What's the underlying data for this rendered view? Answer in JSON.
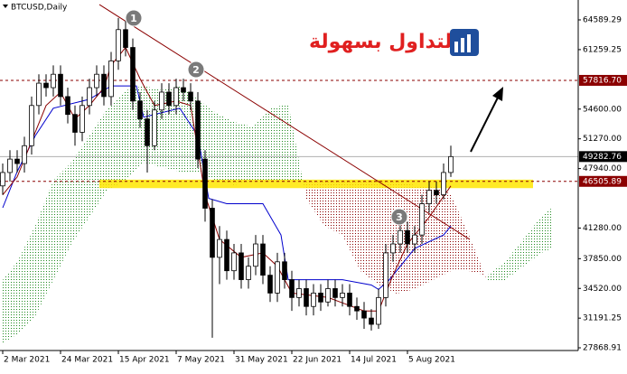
{
  "chart_data": {
    "type": "candlestick",
    "title": "BTCUSD,Daily",
    "x": [
      0,
      2,
      4,
      6,
      8,
      10,
      12,
      14,
      16,
      18,
      20,
      22,
      24,
      26,
      28,
      30,
      32,
      34,
      36,
      38,
      40,
      42,
      44,
      46,
      48,
      50,
      52,
      54,
      56,
      58,
      60,
      62,
      64,
      66,
      68,
      70,
      72,
      74,
      76,
      78,
      80,
      82,
      84,
      86,
      88,
      90,
      92,
      94,
      96,
      98,
      100,
      102,
      104,
      106,
      108,
      110,
      112,
      114,
      116,
      118,
      120,
      122,
      124
    ],
    "open": [
      46000,
      47500,
      49000,
      48500,
      50500,
      55000,
      57500,
      57000,
      58500,
      56000,
      54000,
      52000,
      55000,
      57000,
      58500,
      56000,
      60000,
      63500,
      61500,
      55500,
      53500,
      50500,
      54500,
      56500,
      55000,
      57000,
      56500,
      55500,
      49000,
      43500,
      38000,
      40000,
      36500,
      38500,
      35500,
      37000,
      39500,
      36000,
      34000,
      37500,
      35500,
      33500,
      34500,
      32500,
      34000,
      33000,
      34500,
      33500,
      34000,
      32500,
      32000,
      31200,
      30500,
      33500,
      38500,
      39500,
      41000,
      39500,
      40500,
      44000,
      45500,
      45000,
      47500
    ],
    "high": [
      48500,
      50000,
      50000,
      51500,
      56000,
      58500,
      58500,
      59500,
      59500,
      57000,
      55000,
      56000,
      58000,
      59500,
      59500,
      61000,
      64800,
      64500,
      62500,
      56500,
      54500,
      55500,
      57500,
      57500,
      58000,
      58000,
      57500,
      56500,
      50000,
      44500,
      41500,
      41000,
      39500,
      39500,
      38000,
      40500,
      40500,
      37000,
      38500,
      38500,
      36500,
      35500,
      35500,
      35000,
      35000,
      35500,
      35500,
      35000,
      35000,
      33500,
      33000,
      32200,
      34500,
      39500,
      40500,
      42500,
      42000,
      41500,
      45000,
      46500,
      46500,
      48500,
      50500
    ],
    "low": [
      45000,
      46500,
      47500,
      47500,
      49500,
      54000,
      56000,
      56000,
      55000,
      53000,
      50500,
      51000,
      54000,
      56000,
      55000,
      55000,
      59000,
      60500,
      54500,
      52500,
      47500,
      50000,
      53500,
      54000,
      54000,
      55500,
      54500,
      48000,
      42000,
      29000,
      35000,
      35500,
      35500,
      34500,
      34500,
      36000,
      35000,
      33000,
      33000,
      34500,
      32000,
      32500,
      31500,
      31500,
      32000,
      32500,
      32500,
      32500,
      31500,
      31000,
      30000,
      29800,
      30000,
      32500,
      37500,
      38500,
      38500,
      38500,
      39500,
      43000,
      44000,
      44500,
      47000
    ],
    "close": [
      47500,
      49000,
      48500,
      50500,
      55000,
      57500,
      57000,
      58500,
      56000,
      54000,
      52000,
      55000,
      57000,
      58500,
      56000,
      60000,
      63500,
      61500,
      55500,
      53500,
      50500,
      54500,
      56500,
      55000,
      57000,
      56500,
      55500,
      49000,
      43500,
      38000,
      40000,
      36500,
      38500,
      35500,
      37000,
      39500,
      36000,
      34000,
      37500,
      35500,
      33500,
      34500,
      32500,
      34000,
      33000,
      34500,
      33500,
      34000,
      32500,
      32000,
      31200,
      30500,
      33500,
      38500,
      39500,
      41000,
      39500,
      40500,
      44000,
      45500,
      45000,
      47500,
      49282.76
    ],
    "up_color": "#ffffff",
    "down_color": "#000000",
    "xlim": [
      -0.75,
      159.25
    ],
    "xticks": [
      {
        "value": 0,
        "label": "2 Mar 2021"
      },
      {
        "value": 16,
        "label": "24 Mar 2021"
      },
      {
        "value": 32,
        "label": "15 Apr 2021"
      },
      {
        "value": 48,
        "label": "7 May 2021"
      },
      {
        "value": 64,
        "label": "31 May 2021"
      },
      {
        "value": 80,
        "label": "22 Jun 2021"
      },
      {
        "value": 96,
        "label": "14 Jul 2021"
      },
      {
        "value": 112,
        "label": "5 Aug 2021"
      }
    ],
    "ylim": [
      27567,
      66815
    ],
    "yticks": [
      64589.29,
      61259.25,
      {
        "value": 54600,
        "label": "54600.00"
      },
      {
        "value": 51270,
        "label": "51270.00"
      },
      {
        "value": 47940,
        "label": "47940.00"
      },
      {
        "value": 41280,
        "label": "41280.00"
      },
      {
        "value": 37850,
        "label": "37850.00"
      },
      {
        "value": 34520,
        "label": "34520.00"
      },
      31191.25,
      27868.91
    ],
    "overlays": [
      {
        "color": "#0000cd",
        "x": [
          0,
          4,
          9,
          14,
          24,
          30,
          37,
          39,
          49,
          54,
          57,
          62,
          72,
          77,
          79,
          94,
          102,
          104,
          107,
          114,
          122,
          124
        ],
        "values": [
          43550,
          47600,
          51600,
          54700,
          55700,
          57200,
          57200,
          53700,
          54700,
          51600,
          44600,
          44000,
          44000,
          40500,
          35500,
          35500,
          34900,
          34400,
          35500,
          39000,
          40500,
          41500
        ]
      },
      {
        "color": "#8b0000",
        "x": [
          0,
          4,
          8,
          12,
          16,
          20,
          24,
          28,
          30,
          32,
          34,
          38,
          42,
          48,
          52,
          56,
          60,
          66,
          72,
          76,
          80,
          90,
          100,
          104,
          108,
          112,
          118,
          124
        ],
        "values": [
          45000,
          47000,
          51000,
          55000,
          56500,
          53500,
          55000,
          57000,
          59500,
          60500,
          61500,
          58000,
          55000,
          55500,
          55000,
          45000,
          40000,
          38000,
          38500,
          37000,
          34000,
          33500,
          32000,
          32000,
          36000,
          39500,
          42500,
          46000
        ]
      }
    ],
    "cloud": {
      "x": [
        0,
        4,
        9,
        14,
        19,
        24,
        29,
        34,
        39,
        44,
        49,
        54,
        59,
        64,
        69,
        74,
        79,
        84,
        89,
        94,
        99,
        104,
        109,
        114,
        119,
        124,
        129,
        134,
        139,
        144,
        149,
        152
      ],
      "span_a": [
        35457,
        37478,
        41527,
        46585,
        48609,
        51642,
        54676,
        56699,
        57205,
        56699,
        57205,
        55688,
        54170,
        53159,
        52653,
        54676,
        55182,
        44561,
        41527,
        40503,
        36466,
        34951,
        33939,
        34445,
        35457,
        36466,
        36466,
        35962,
        37478,
        40010,
        42538,
        43550
      ],
      "span_b": [
        28378,
        29390,
        31412,
        35457,
        39504,
        42538,
        45573,
        46585,
        48609,
        48104,
        47596,
        47596,
        46585,
        46079,
        46585,
        46585,
        46585,
        46585,
        46585,
        46585,
        46585,
        46585,
        46585,
        46079,
        46079,
        45067,
        40515,
        35457,
        35457,
        36973,
        38495,
        39004
      ],
      "up_color": "#228b22",
      "down_color": "#8b0000"
    },
    "levels": [
      {
        "value": 57816.7,
        "label": "57816.70",
        "color": "#8b0000",
        "style": "dashed"
      },
      {
        "value": 49282.76,
        "label": "49282.76",
        "color": "#000000",
        "style": "solid"
      },
      {
        "value": 46505.89,
        "label": "46505.89",
        "color": "#8b0000",
        "style": "dashed"
      }
    ],
    "zone": {
      "xlim": [
        26.75,
        146.75
      ],
      "ylim": [
        45750,
        46700
      ],
      "color": "#ffe600"
    },
    "trendline": {
      "x": [
        26.75,
        129.25
      ],
      "y": [
        66300,
        40000
      ],
      "color": "#8b0000"
    },
    "annotations": [
      {
        "x": 36.25,
        "y": 64790,
        "label": "1"
      },
      {
        "x": 53.5,
        "y": 59026,
        "label": "2"
      },
      {
        "x": 109.75,
        "y": 42538,
        "label": "3"
      }
    ],
    "brand": "التداول بسهولة"
  }
}
